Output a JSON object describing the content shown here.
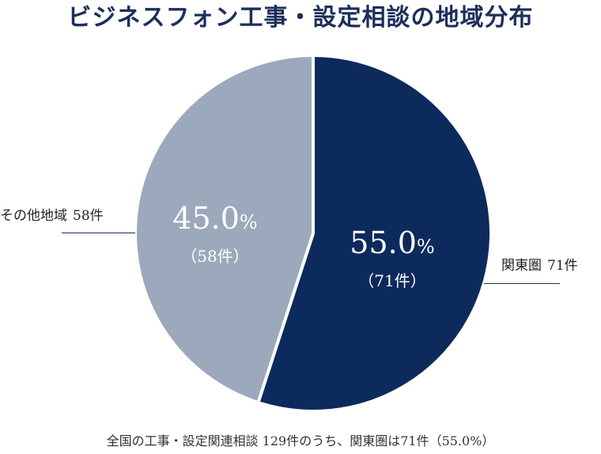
{
  "chart_data": {
    "type": "pie",
    "title": "ビジネスフォン工事・設定相談の地域分布",
    "total": 129,
    "slices": [
      {
        "label": "関東圏",
        "count": 71,
        "count_text": "71件",
        "percent": 55.0,
        "percent_text": "55.0",
        "pct_sign": "%",
        "sub_text": "（71件）",
        "color": "#0d2a5c"
      },
      {
        "label": "その他地域",
        "count": 58,
        "count_text": "58件",
        "percent": 45.0,
        "percent_text": "45.0",
        "pct_sign": "%",
        "sub_text": "（58件）",
        "color": "#9ca8bc"
      }
    ],
    "footnote": "全国の工事・設定関連相談 129件のうち、関東圏は71件（55.0%）"
  }
}
